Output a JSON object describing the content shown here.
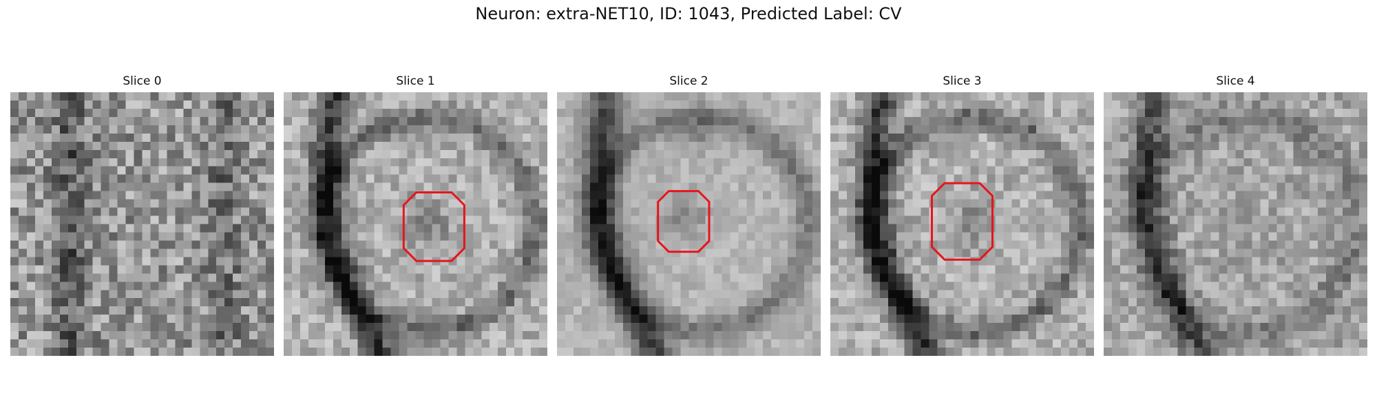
{
  "figure": {
    "title": "Neuron: extra-NET10, ID: 1043, Predicted Label: CV"
  },
  "slices": [
    {
      "title": "Slice 0",
      "roi": false,
      "pattern": "noisy"
    },
    {
      "title": "Slice 1",
      "roi": true,
      "pattern": "ring",
      "roi_center": [
        0.57,
        0.51
      ],
      "roi_half_size": [
        0.115,
        0.13
      ]
    },
    {
      "title": "Slice 2",
      "roi": true,
      "pattern": "smooth",
      "roi_center": [
        0.48,
        0.49
      ],
      "roi_half_size": [
        0.097,
        0.115
      ]
    },
    {
      "title": "Slice 3",
      "roi": true,
      "pattern": "ring",
      "roi_center": [
        0.5,
        0.49
      ],
      "roi_half_size": [
        0.115,
        0.145
      ]
    },
    {
      "title": "Slice 4",
      "roi": false,
      "pattern": "noisy-ring"
    }
  ],
  "colors": {
    "roi": "#e8141c",
    "text": "#111111"
  }
}
